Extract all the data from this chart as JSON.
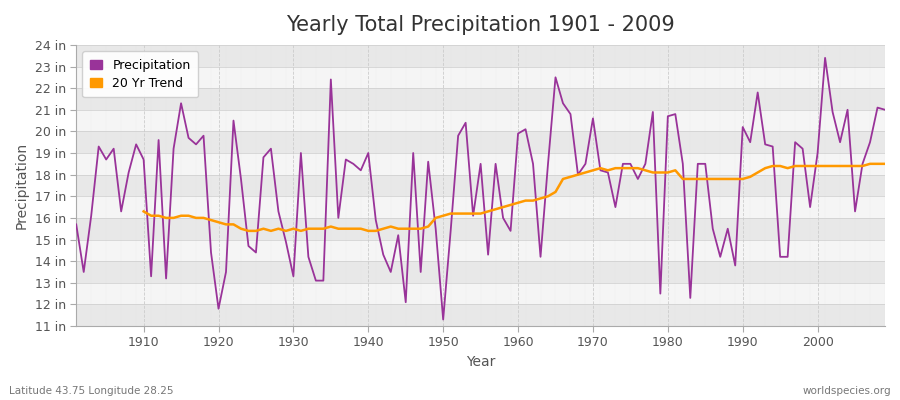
{
  "title": "Yearly Total Precipitation 1901 - 2009",
  "xlabel": "Year",
  "ylabel": "Precipitation",
  "footnote_left": "Latitude 43.75 Longitude 28.25",
  "footnote_right": "worldspecies.org",
  "years": [
    1901,
    1902,
    1903,
    1904,
    1905,
    1906,
    1907,
    1908,
    1909,
    1910,
    1911,
    1912,
    1913,
    1914,
    1915,
    1916,
    1917,
    1918,
    1919,
    1920,
    1921,
    1922,
    1923,
    1924,
    1925,
    1926,
    1927,
    1928,
    1929,
    1930,
    1931,
    1932,
    1933,
    1934,
    1935,
    1936,
    1937,
    1938,
    1939,
    1940,
    1941,
    1942,
    1943,
    1944,
    1945,
    1946,
    1947,
    1948,
    1949,
    1950,
    1951,
    1952,
    1953,
    1954,
    1955,
    1956,
    1957,
    1958,
    1959,
    1960,
    1961,
    1962,
    1963,
    1964,
    1965,
    1966,
    1967,
    1968,
    1969,
    1970,
    1971,
    1972,
    1973,
    1974,
    1975,
    1976,
    1977,
    1978,
    1979,
    1980,
    1981,
    1982,
    1983,
    1984,
    1985,
    1986,
    1987,
    1988,
    1989,
    1990,
    1991,
    1992,
    1993,
    1994,
    1995,
    1996,
    1997,
    1998,
    1999,
    2000,
    2001,
    2002,
    2003,
    2004,
    2005,
    2006,
    2007,
    2008,
    2009
  ],
  "precip": [
    15.7,
    13.5,
    16.1,
    19.3,
    18.7,
    19.2,
    16.3,
    18.1,
    19.4,
    18.7,
    13.3,
    19.6,
    13.2,
    19.2,
    21.3,
    19.7,
    19.4,
    19.8,
    14.4,
    11.8,
    13.5,
    20.5,
    17.8,
    14.7,
    14.4,
    18.8,
    19.2,
    16.3,
    14.9,
    13.3,
    19.0,
    14.2,
    13.1,
    13.1,
    22.4,
    16.0,
    18.7,
    18.5,
    18.2,
    19.0,
    15.9,
    14.3,
    13.5,
    15.2,
    12.1,
    19.0,
    13.5,
    18.6,
    15.5,
    11.3,
    15.4,
    19.8,
    20.4,
    16.1,
    18.5,
    14.3,
    18.5,
    16.0,
    15.4,
    19.9,
    20.1,
    18.5,
    14.2,
    18.5,
    22.5,
    21.3,
    20.8,
    18.0,
    18.5,
    20.6,
    18.2,
    18.1,
    16.5,
    18.5,
    18.5,
    17.8,
    18.5,
    20.9,
    12.5,
    20.7,
    20.8,
    18.5,
    12.3,
    18.5,
    18.5,
    15.5,
    14.2,
    15.5,
    13.8,
    20.2,
    19.5,
    21.8,
    19.4,
    19.3,
    14.2,
    14.2,
    19.5,
    19.2,
    16.5,
    19.0,
    23.4,
    20.9,
    19.5,
    21.0,
    16.3,
    18.5,
    19.5,
    21.1,
    21.0
  ],
  "trend_years": [
    1910,
    1911,
    1912,
    1913,
    1914,
    1915,
    1916,
    1917,
    1918,
    1919,
    1920,
    1921,
    1922,
    1923,
    1924,
    1925,
    1926,
    1927,
    1928,
    1929,
    1930,
    1931,
    1932,
    1933,
    1934,
    1935,
    1936,
    1937,
    1938,
    1939,
    1940,
    1941,
    1942,
    1943,
    1944,
    1945,
    1946,
    1947,
    1948,
    1949,
    1950,
    1951,
    1952,
    1953,
    1954,
    1955,
    1956,
    1957,
    1958,
    1959,
    1960,
    1961,
    1962,
    1963,
    1964,
    1965,
    1966,
    1967,
    1968,
    1969,
    1970,
    1971,
    1972,
    1973,
    1974,
    1975,
    1976,
    1977,
    1978,
    1979,
    1980,
    1981,
    1982,
    1983,
    1984,
    1985,
    1986,
    1987,
    1988,
    1989,
    1990,
    1991,
    1992,
    1993,
    1994,
    1995,
    1996,
    1997,
    1998,
    1999,
    2000,
    2001,
    2002,
    2003,
    2004,
    2005,
    2006,
    2007,
    2008,
    2009
  ],
  "trend": [
    16.3,
    16.1,
    16.1,
    16.0,
    16.0,
    16.1,
    16.1,
    16.0,
    16.0,
    15.9,
    15.8,
    15.7,
    15.7,
    15.5,
    15.4,
    15.4,
    15.5,
    15.4,
    15.5,
    15.4,
    15.5,
    15.4,
    15.5,
    15.5,
    15.5,
    15.6,
    15.5,
    15.5,
    15.5,
    15.5,
    15.4,
    15.4,
    15.5,
    15.6,
    15.5,
    15.5,
    15.5,
    15.5,
    15.6,
    16.0,
    16.1,
    16.2,
    16.2,
    16.2,
    16.2,
    16.2,
    16.3,
    16.4,
    16.5,
    16.6,
    16.7,
    16.8,
    16.8,
    16.9,
    17.0,
    17.2,
    17.8,
    17.9,
    18.0,
    18.1,
    18.2,
    18.3,
    18.2,
    18.3,
    18.3,
    18.3,
    18.3,
    18.2,
    18.1,
    18.1,
    18.1,
    18.2,
    17.8,
    17.8,
    17.8,
    17.8,
    17.8,
    17.8,
    17.8,
    17.8,
    17.8,
    17.9,
    18.1,
    18.3,
    18.4,
    18.4,
    18.3,
    18.4,
    18.4,
    18.4,
    18.4,
    18.4,
    18.4,
    18.4,
    18.4,
    18.4,
    18.4,
    18.5,
    18.5,
    18.5
  ],
  "precip_color": "#993399",
  "trend_color": "#FF9900",
  "bg_color": "#FFFFFF",
  "plot_bg_color": "#FFFFFF",
  "grid_color_major": "#CCCCCC",
  "grid_color_minor": "#E8E8E8",
  "band_color_dark": "#E8E8E8",
  "band_color_light": "#F5F5F5",
  "ylim": [
    11,
    24
  ],
  "ytick_values": [
    11,
    12,
    13,
    14,
    15,
    16,
    17,
    18,
    19,
    20,
    21,
    22,
    23,
    24
  ],
  "ytick_labels": [
    "11 in",
    "12 in",
    "13 in",
    "14 in",
    "15 in",
    "16 in",
    "17 in",
    "18 in",
    "19 in",
    "20 in",
    "21 in",
    "22 in",
    "23 in",
    "24 in"
  ],
  "xtick_values": [
    1910,
    1920,
    1930,
    1940,
    1950,
    1960,
    1970,
    1980,
    1990,
    2000
  ],
  "title_fontsize": 15,
  "label_fontsize": 10,
  "tick_fontsize": 9,
  "legend_fontsize": 9,
  "xlim_left": 1901,
  "xlim_right": 2009
}
